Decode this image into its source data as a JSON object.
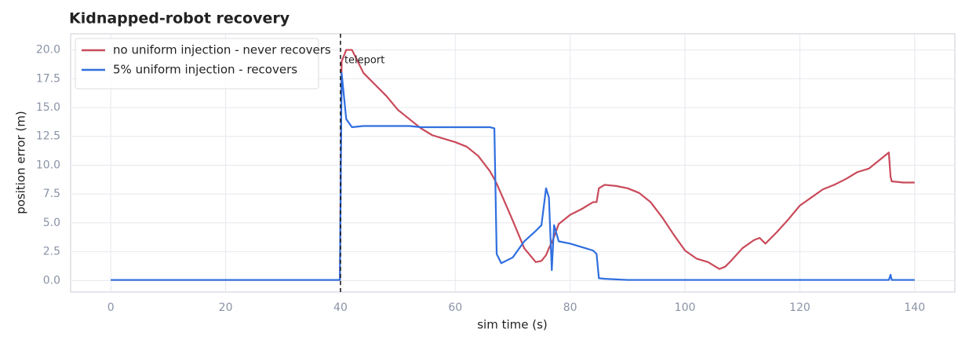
{
  "chart_data": {
    "type": "line",
    "title": "Kidnapped-robot recovery",
    "x_label": "sim time (s)",
    "y_label": "position error (m)",
    "x": [
      0,
      5,
      10,
      15,
      20,
      25,
      30,
      35,
      39.9,
      40.2,
      41,
      42,
      44,
      46,
      48,
      50,
      52,
      54,
      56,
      58,
      60,
      62,
      64,
      66,
      66.8,
      67.2,
      68,
      70,
      72,
      74,
      75,
      75.8,
      76.3,
      76.8,
      77.2,
      78,
      80,
      82,
      84,
      84.6,
      85,
      86,
      88,
      90,
      92,
      94,
      96,
      98,
      100,
      102,
      104,
      106,
      107,
      108,
      110,
      112,
      113,
      114,
      116,
      118,
      120,
      122,
      124,
      126,
      128,
      130,
      132,
      134,
      135.5,
      135.8,
      136,
      138,
      140
    ],
    "series": [
      {
        "name": "no uniform injection - never recovers",
        "color": "#c94a5a",
        "values": [
          0.05,
          0.05,
          0.05,
          0.05,
          0.05,
          0.05,
          0.05,
          0.05,
          0.05,
          19,
          20,
          20,
          18,
          17,
          16,
          14.8,
          14,
          13.2,
          12.6,
          12.3,
          12.0,
          11.6,
          10.8,
          9.5,
          8.8,
          8.4,
          7.5,
          5.2,
          2.8,
          1.6,
          1.7,
          2.2,
          2.8,
          3.3,
          3.8,
          4.9,
          5.7,
          6.2,
          6.8,
          6.8,
          8.0,
          8.3,
          8.2,
          8.0,
          7.6,
          6.8,
          5.5,
          4.0,
          2.6,
          1.9,
          1.6,
          1.0,
          1.2,
          1.7,
          2.8,
          3.5,
          3.7,
          3.2,
          4.2,
          5.3,
          6.5,
          7.2,
          7.9,
          8.3,
          8.8,
          9.4,
          9.7,
          10.5,
          11.1,
          9.0,
          8.6,
          8.5,
          8.5
        ]
      },
      {
        "name": "5% uniform injection - recovers",
        "color": "#2f6fe0",
        "values": [
          0.05,
          0.05,
          0.05,
          0.05,
          0.05,
          0.05,
          0.05,
          0.05,
          0.05,
          18,
          14,
          13.3,
          13.4,
          13.4,
          13.4,
          13.4,
          13.4,
          13.3,
          13.3,
          13.3,
          13.3,
          13.3,
          13.3,
          13.3,
          13.2,
          2.3,
          1.5,
          2.0,
          3.4,
          4.3,
          4.8,
          8.0,
          7.2,
          0.9,
          4.8,
          3.4,
          3.2,
          2.9,
          2.6,
          2.3,
          0.2,
          0.15,
          0.1,
          0.05,
          0.05,
          0.05,
          0.05,
          0.05,
          0.05,
          0.05,
          0.05,
          0.05,
          0.05,
          0.05,
          0.05,
          0.05,
          0.05,
          0.05,
          0.05,
          0.05,
          0.05,
          0.05,
          0.05,
          0.05,
          0.05,
          0.05,
          0.05,
          0.05,
          0.05,
          0.5,
          0.05,
          0.05,
          0.05
        ]
      }
    ],
    "vline": {
      "x": 40,
      "label": "teleport"
    },
    "xlim": [
      -7,
      147
    ],
    "ylim": [
      -1.0,
      21.4
    ],
    "xticks": [
      0,
      20,
      40,
      60,
      80,
      100,
      120,
      140
    ],
    "yticks": [
      {
        "value": 0,
        "label": "0.0"
      },
      2.5,
      {
        "value": 5,
        "label": "5.0"
      },
      7.5,
      {
        "value": 10,
        "label": "10.0"
      },
      12.5,
      {
        "value": 15,
        "label": "15.0"
      },
      17.5,
      {
        "value": 20,
        "label": "20.0"
      }
    ],
    "grid": true,
    "legend": "upper left"
  }
}
